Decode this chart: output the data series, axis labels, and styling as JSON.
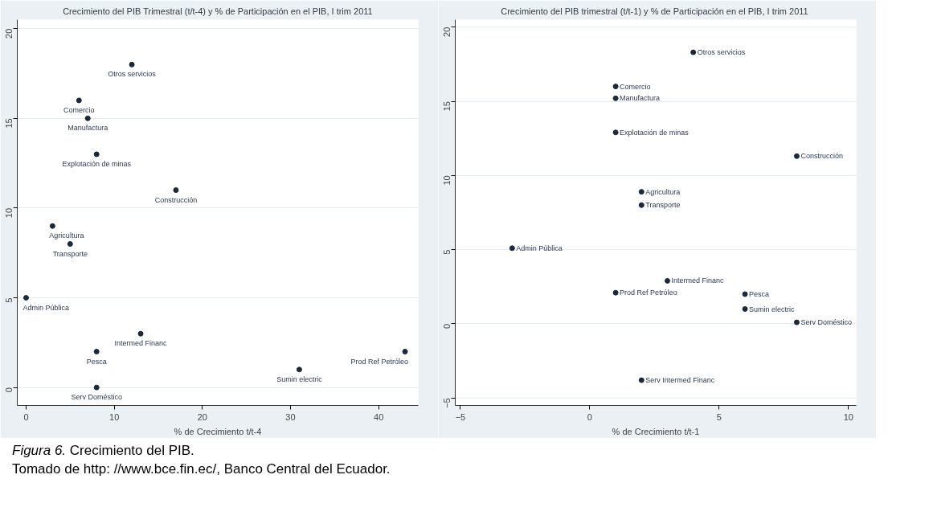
{
  "chart_data": [
    {
      "type": "scatter",
      "title": "Crecimiento del PIB Trimestral (t/t-4) y % de Participación en el PIB, I trim 2011",
      "xlabel": "% de Crecimiento t/t-4",
      "xlim": [
        -1,
        44.5
      ],
      "xticks": [
        0,
        10,
        20,
        30,
        40
      ],
      "ylim": [
        -1,
        20.5
      ],
      "yticks": [
        0,
        5,
        10,
        15,
        20
      ],
      "grid": "y",
      "marker": "circle",
      "series": [
        {
          "color": "#1a2a3a",
          "x": [
            12,
            6,
            7,
            8,
            17,
            3,
            5,
            0,
            13,
            8,
            8,
            31,
            43
          ],
          "values": [
            18,
            16,
            15,
            13,
            11,
            9,
            8,
            5,
            3,
            2,
            0,
            1,
            2
          ]
        }
      ],
      "annotations": [
        {
          "text": "Otros servicios",
          "x": 12,
          "y": 18
        },
        {
          "text": "Comercio",
          "x": 6,
          "y": 16
        },
        {
          "text": "Manufactura",
          "x": 7,
          "y": 15
        },
        {
          "text": "Explotación de minas",
          "x": 8,
          "y": 13
        },
        {
          "text": "Construcción",
          "x": 17,
          "y": 11
        },
        {
          "text": "Agricultura",
          "x": 3,
          "y": 9
        },
        {
          "text": "Transporte",
          "x": 5,
          "y": 8
        },
        {
          "text": "Admin Pública",
          "x": 0,
          "y": 5
        },
        {
          "text": "Intermed Financ",
          "x": 13,
          "y": 3
        },
        {
          "text": "Pesca",
          "x": 8,
          "y": 2
        },
        {
          "text": "Serv Doméstico",
          "x": 8,
          "y": 0
        },
        {
          "text": "Sumin electric",
          "x": 31,
          "y": 1
        },
        {
          "text": "Prod Ref Petróleo",
          "x": 43,
          "y": 2
        }
      ]
    },
    {
      "type": "scatter",
      "title": "Crecimiento del PIB trimestral (t/t-1)  y % de Participación en el PIB, I trim 2011",
      "xlabel": "% de Crecimiento t/t-1",
      "xlim": [
        -5.2,
        10.3
      ],
      "xticks": [
        -5,
        0,
        5,
        10
      ],
      "ylim": [
        -5.5,
        20.5
      ],
      "yticks": [
        -5,
        0,
        5,
        10,
        15,
        20
      ],
      "grid": "y",
      "marker": "circle",
      "series": [
        {
          "color": "#1a2a3a",
          "x": [
            4,
            1,
            1,
            1,
            8,
            2,
            2,
            -3,
            3,
            1,
            6,
            6,
            8,
            2
          ],
          "values": [
            18.3,
            16,
            15.2,
            12.9,
            11.3,
            8.9,
            8,
            5.1,
            2.9,
            2.1,
            2,
            1,
            0.1,
            -3.8
          ]
        }
      ],
      "annotations": [
        {
          "text": "Otros servicios",
          "x": 4,
          "y": 18.3
        },
        {
          "text": "Comercio",
          "x": 1,
          "y": 16
        },
        {
          "text": "Manufactura",
          "x": 1,
          "y": 15.2
        },
        {
          "text": "Explotación de minas",
          "x": 1,
          "y": 12.9
        },
        {
          "text": "Construcción",
          "x": 8,
          "y": 11.3
        },
        {
          "text": "Agricultura",
          "x": 2,
          "y": 8.9
        },
        {
          "text": "Transporte",
          "x": 2,
          "y": 8
        },
        {
          "text": "Admin Pública",
          "x": -3,
          "y": 5.1
        },
        {
          "text": "Intermed Financ",
          "x": 3,
          "y": 2.9
        },
        {
          "text": "Prod Ref Petróleo",
          "x": 1,
          "y": 2.1
        },
        {
          "text": "Pesca",
          "x": 6,
          "y": 2
        },
        {
          "text": "Sumin electric",
          "x": 6,
          "y": 1
        },
        {
          "text": "Serv Doméstico",
          "x": 8,
          "y": 0.1
        },
        {
          "text": "Serv Intermed Financ",
          "x": 2,
          "y": -3.8
        },
        "Figura 6. Crecimiento del PIB.",
        "Tomado de http: //www.bce.fin.ec/,  Banco Central del Ecuador."
      ]
    }
  ]
}
